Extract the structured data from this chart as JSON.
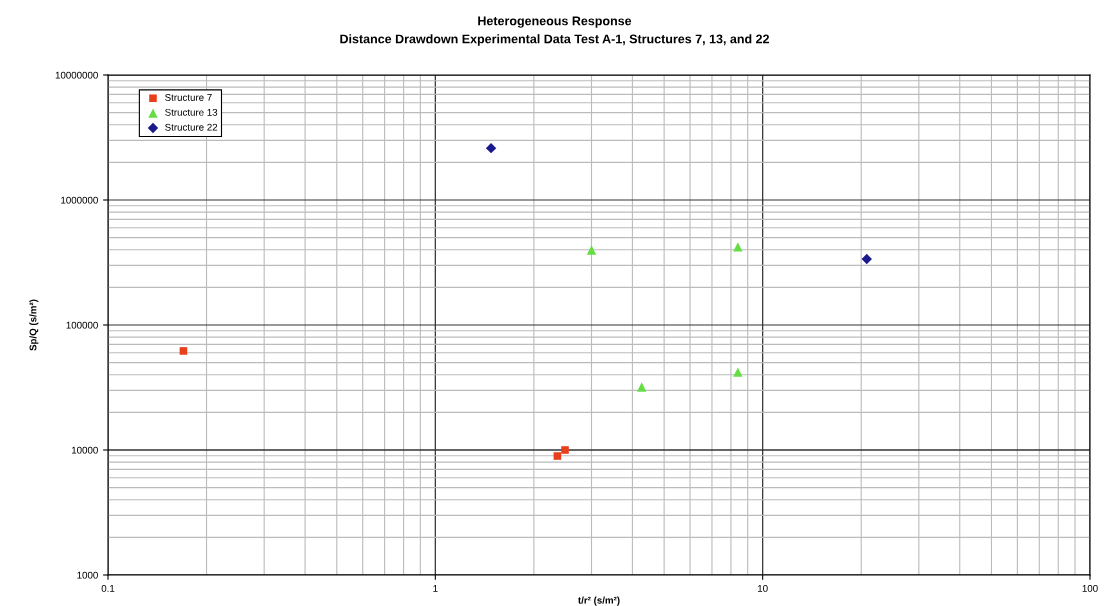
{
  "chart_data": {
    "type": "scatter",
    "title": "Heterogeneous Response",
    "subtitle": "Distance Drawdown Experimental Data Test A-1, Structures 7, 13, and 22",
    "xlabel": "t/r² (s/m²)",
    "ylabel": "Sp/Q (s/m²)",
    "log": "xy",
    "grid": true,
    "legend": "top left",
    "xlim": [
      0.1,
      100
    ],
    "xticks": [
      0.1,
      1,
      10,
      100
    ],
    "ylim": [
      1000,
      10000000
    ],
    "yticks": [
      1000,
      10000,
      100000,
      1000000,
      10000000
    ],
    "series": [
      {
        "name": "Structure 7",
        "color": "#e8401c",
        "marker": "square",
        "x": [
          0.17,
          2.36,
          2.49
        ],
        "values": [
          62000,
          8950,
          10000
        ]
      },
      {
        "name": "Structure 13",
        "color": "#66dd44",
        "marker": "triangle",
        "x": [
          3.0,
          4.27,
          8.4,
          8.4
        ],
        "values": [
          398000,
          31900,
          421000,
          42000
        ]
      },
      {
        "name": "Structure 22",
        "color": "#1a1a8c",
        "marker": "diamond",
        "x": [
          1.48,
          20.8
        ],
        "values": [
          2600000,
          337000
        ]
      }
    ]
  }
}
